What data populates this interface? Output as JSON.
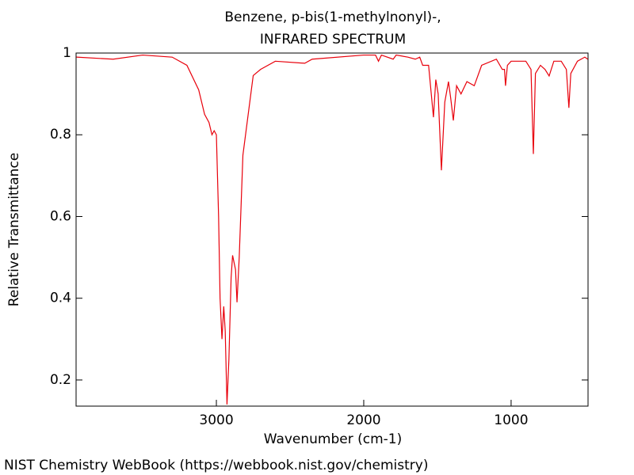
{
  "chart_data": {
    "type": "line",
    "title": "Benzene, p-bis(1-methylnonyl)-,",
    "subtitle": "INFRARED SPECTRUM",
    "x_label": "Wavenumber (cm-1)",
    "y_label": "Relative Transmittance",
    "footer": "NIST Chemistry WebBook (https://webbook.nist.gov/chemistry)",
    "color": "#e8000b",
    "x": [
      3950,
      3700,
      3500,
      3300,
      3200,
      3120,
      3080,
      3050,
      3030,
      3015,
      3000,
      2985,
      2975,
      2962,
      2950,
      2940,
      2928,
      2915,
      2900,
      2890,
      2870,
      2860,
      2845,
      2820,
      2750,
      2700,
      2600,
      2400,
      2350,
      2000,
      1920,
      1900,
      1880,
      1800,
      1780,
      1700,
      1650,
      1620,
      1600,
      1560,
      1527,
      1511,
      1495,
      1473,
      1450,
      1425,
      1410,
      1392,
      1370,
      1340,
      1300,
      1250,
      1200,
      1100,
      1060,
      1045,
      1038,
      1025,
      1000,
      900,
      865,
      849,
      835,
      801,
      770,
      742,
      710,
      660,
      625,
      608,
      595,
      550,
      500,
      480
    ],
    "values": [
      0.99,
      0.985,
      0.995,
      0.99,
      0.97,
      0.91,
      0.85,
      0.83,
      0.8,
      0.81,
      0.8,
      0.6,
      0.4,
      0.3,
      0.38,
      0.32,
      0.14,
      0.25,
      0.45,
      0.505,
      0.47,
      0.39,
      0.5,
      0.75,
      0.945,
      0.96,
      0.98,
      0.975,
      0.985,
      0.995,
      0.995,
      0.98,
      0.995,
      0.985,
      0.995,
      0.99,
      0.985,
      0.99,
      0.97,
      0.97,
      0.843,
      0.935,
      0.9,
      0.713,
      0.88,
      0.93,
      0.89,
      0.835,
      0.92,
      0.9,
      0.93,
      0.92,
      0.97,
      0.985,
      0.96,
      0.96,
      0.92,
      0.97,
      0.98,
      0.98,
      0.96,
      0.753,
      0.95,
      0.97,
      0.96,
      0.944,
      0.98,
      0.98,
      0.96,
      0.866,
      0.95,
      0.98,
      0.99,
      0.985
    ],
    "xlim": [
      3952,
      478
    ],
    "xticks": [
      3000,
      2000,
      1000
    ],
    "ylim": [
      0.136,
      1
    ],
    "yticks": [
      0.2,
      0.4,
      0.6,
      0.8,
      1
    ]
  }
}
